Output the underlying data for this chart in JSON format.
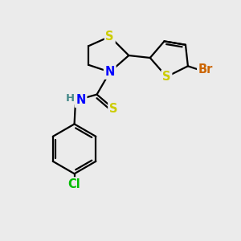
{
  "background_color": "#ebebeb",
  "atom_colors": {
    "S": "#cccc00",
    "N": "#0000ff",
    "Br": "#cc6600",
    "Cl": "#00bb00",
    "H": "#448888",
    "C": "#000000"
  },
  "bond_color": "#000000",
  "bond_width": 1.6,
  "font_size_atom": 10.5
}
